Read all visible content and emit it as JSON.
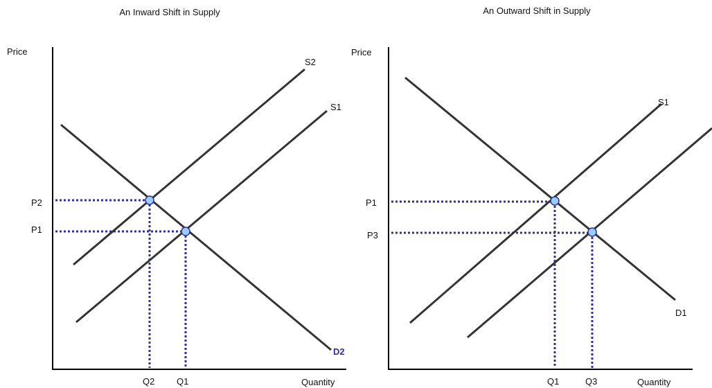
{
  "panels": [
    {
      "title": "An Inward Shift in Supply",
      "y_axis": "Price",
      "x_axis": "Quantity",
      "curves": [
        "S2",
        "S1",
        "D2"
      ],
      "prices": [
        "P2",
        "P1"
      ],
      "quantities": [
        "Q2",
        "Q1"
      ]
    },
    {
      "title": "An Outward Shift in Supply",
      "y_axis": "Price",
      "x_axis": "Quantity",
      "curves": [
        "S1",
        "D1"
      ],
      "prices": [
        "P1",
        "P3"
      ],
      "quantities": [
        "Q1",
        "Q3"
      ]
    }
  ]
}
